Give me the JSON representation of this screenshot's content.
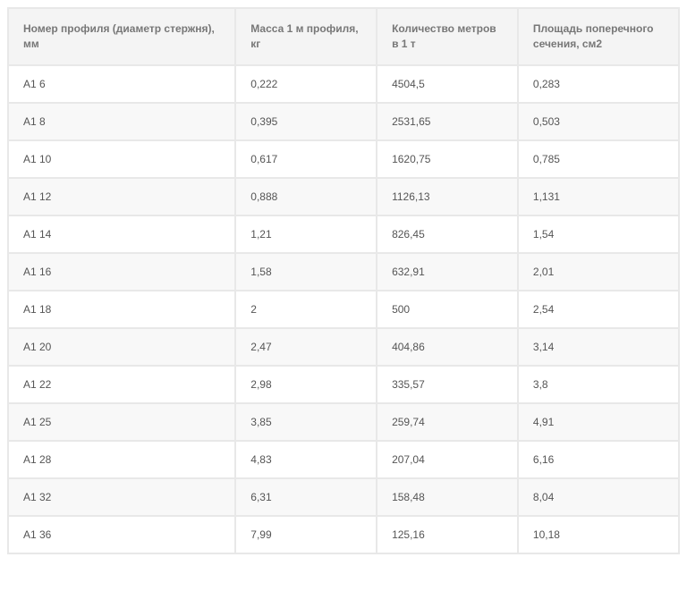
{
  "table": {
    "columns": [
      "Номер профиля (диаметр стержня), мм",
      "Масса 1 м профиля, кг",
      "Количество метров в 1 т",
      "Площадь поперечного сечения, см2"
    ],
    "rows": [
      [
        "А1 6",
        "0,222",
        "4504,5",
        "0,283"
      ],
      [
        "А1 8",
        "0,395",
        "2531,65",
        "0,503"
      ],
      [
        "А1 10",
        "0,617",
        "1620,75",
        "0,785"
      ],
      [
        "А1 12",
        "0,888",
        "1126,13",
        "1,131"
      ],
      [
        "А1 14",
        "1,21",
        "826,45",
        "1,54"
      ],
      [
        "А1 16",
        "1,58",
        "632,91",
        "2,01"
      ],
      [
        "А1 18",
        "2",
        "500",
        "2,54"
      ],
      [
        "А1 20",
        "2,47",
        "404,86",
        "3,14"
      ],
      [
        "А1 22",
        "2,98",
        "335,57",
        "3,8"
      ],
      [
        "А1 25",
        "3,85",
        "259,74",
        "4,91"
      ],
      [
        "А1 28",
        "4,83",
        "207,04",
        "6,16"
      ],
      [
        "А1 32",
        "6,31",
        "158,48",
        "8,04"
      ],
      [
        "А1 36",
        "7,99",
        "125,16",
        "10,18"
      ]
    ],
    "styling": {
      "header_bg": "#f4f4f4",
      "header_color": "#777777",
      "row_odd_bg": "#ffffff",
      "row_even_bg": "#f8f8f8",
      "cell_color": "#555555",
      "border_color": "#e8e8e8",
      "font_size_header": 12,
      "font_size_cell": 12,
      "col_widths_pct": [
        34,
        21,
        21,
        24
      ]
    }
  }
}
